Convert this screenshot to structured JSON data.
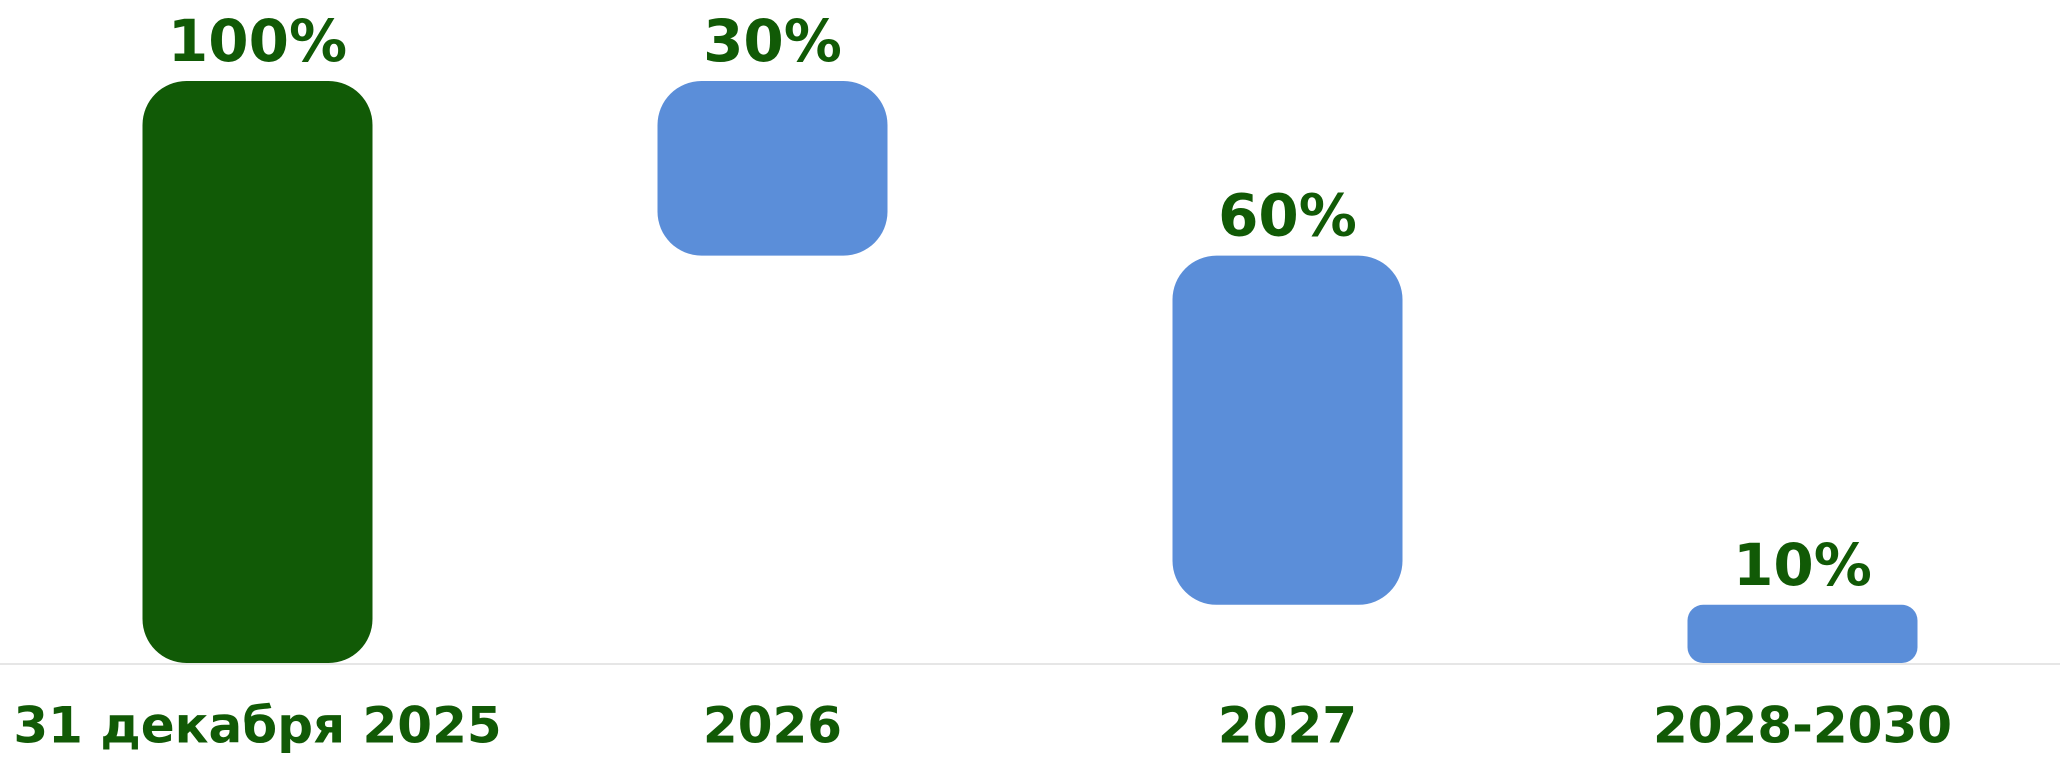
{
  "chart_data": {
    "type": "waterfall",
    "categories": [
      "31 декабря 2025",
      "2026",
      "2027",
      "2028-2030"
    ],
    "values": [
      100,
      30,
      60,
      10
    ],
    "value_labels": [
      "100%",
      "30%",
      "60%",
      "10%"
    ],
    "colors": [
      "#115a06",
      "#5b8ed9",
      "#5b8ed9",
      "#5b8ed9"
    ]
  }
}
